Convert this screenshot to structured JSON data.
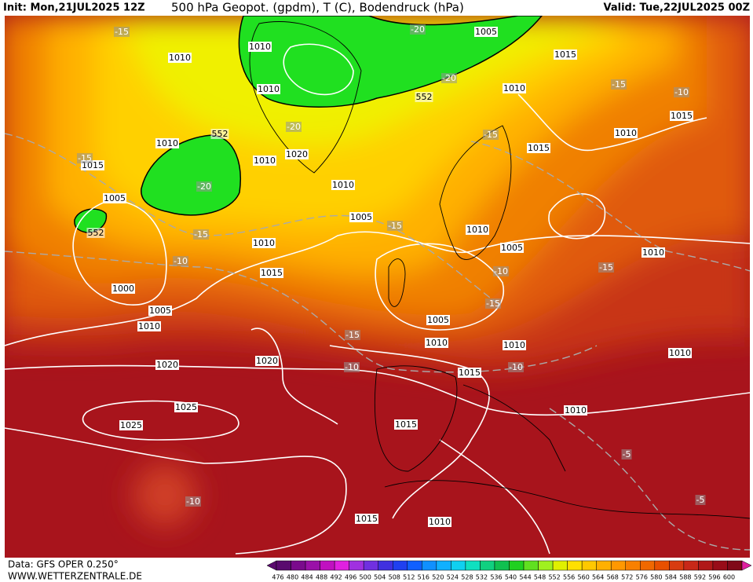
{
  "header": {
    "init": "Init: Mon,21JUL2025 12Z",
    "title": "500 hPa Geopot. (gpdm), T (C), Bodendruck (hPa)",
    "valid": "Valid: Tue,22JUL2025 00Z"
  },
  "footer": {
    "source": "Data: GFS OPER 0.250°",
    "site": "WWW.WETTERZENTRALE.DE"
  },
  "legend": {
    "levels": [
      476,
      480,
      484,
      488,
      492,
      496,
      500,
      504,
      508,
      512,
      516,
      520,
      524,
      528,
      532,
      536,
      540,
      544,
      548,
      552,
      556,
      560,
      564,
      568,
      572,
      576,
      580,
      584,
      588,
      592,
      596,
      600
    ],
    "colors": [
      "#5a0a6e",
      "#7a0a8c",
      "#9a10a8",
      "#c010c0",
      "#e020e0",
      "#a030e0",
      "#7030e0",
      "#4030e0",
      "#2040f0",
      "#1060ff",
      "#1090ff",
      "#10b0ff",
      "#10d0f0",
      "#10e0c0",
      "#10d080",
      "#10c050",
      "#20d020",
      "#60e020",
      "#a0f020",
      "#e0f000",
      "#ffe000",
      "#ffc800",
      "#ffb000",
      "#ff9800",
      "#f88000",
      "#f06800",
      "#e85000",
      "#d83c10",
      "#c82818",
      "#b01818",
      "#980c18",
      "#800818"
    ]
  },
  "map": {
    "pressure_labels": [
      1010,
      1010,
      1010,
      1010,
      1010,
      1010,
      1010,
      1010,
      1010,
      1010,
      1010,
      1010,
      1010,
      1010,
      1010,
      1010,
      1010,
      1015,
      1015,
      1015,
      1015,
      1015,
      1015,
      1015,
      1015,
      1005,
      1005,
      1005,
      1005,
      1005,
      1005,
      1020,
      1020,
      1020,
      1025,
      1025,
      1000
    ],
    "temperature_labels": [
      -15,
      -15,
      -15,
      -15,
      -15,
      -15,
      -15,
      -15,
      -15,
      -20,
      -20,
      -20,
      -20,
      -10,
      -10,
      -10,
      -10,
      -10,
      -10,
      -5,
      -5
    ],
    "height_labels": [
      552,
      552,
      552
    ]
  }
}
